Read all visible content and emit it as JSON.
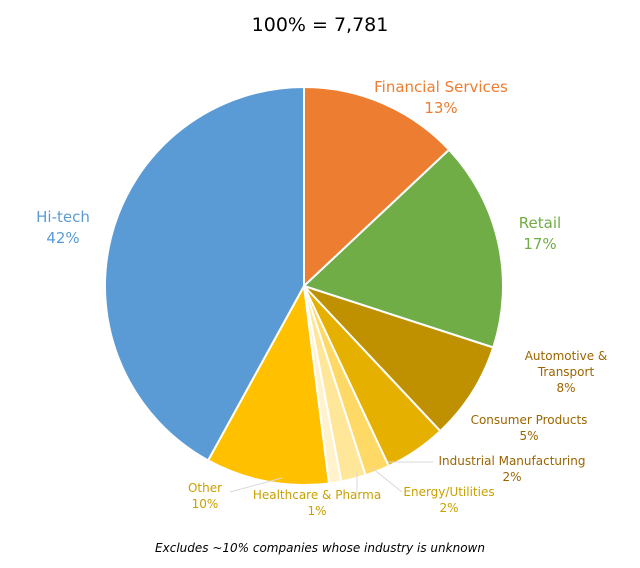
{
  "chart_title": "100% = 7,781",
  "footnote": "Excludes ~10% companies whose industry is unknown",
  "chart_data": {
    "type": "pie",
    "title": "100% = 7,781",
    "total": "7,781",
    "slices": [
      {
        "label_lines": [
          "Financial Services"
        ],
        "value": 13,
        "value_label": "13%",
        "color": "#ED7D31",
        "label_color": "#ED7D31"
      },
      {
        "label_lines": [
          "Retail"
        ],
        "value": 17,
        "value_label": "17%",
        "color": "#70AD47",
        "label_color": "#70AD47"
      },
      {
        "label_lines": [
          "Automotive &",
          "Transport"
        ],
        "value": 8,
        "value_label": "8%",
        "color": "#BF9000",
        "label_color": "#9C6500"
      },
      {
        "label_lines": [
          "Consumer Products"
        ],
        "value": 5,
        "value_label": "5%",
        "color": "#E6B000",
        "label_color": "#9C6500"
      },
      {
        "label_lines": [
          "Industrial Manufacturing"
        ],
        "value": 2,
        "value_label": "2%",
        "color": "#FFD966",
        "label_color": "#9C6500"
      },
      {
        "label_lines": [
          "Energy/Utilities"
        ],
        "value": 2,
        "value_label": "2%",
        "color": "#FFE699",
        "label_color": "#C9A000"
      },
      {
        "label_lines": [
          "Healthcare & Pharma"
        ],
        "value": 1,
        "value_label": "1%",
        "color": "#FFF2CC",
        "label_color": "#C9A000"
      },
      {
        "label_lines": [
          "Other"
        ],
        "value": 10,
        "value_label": "10%",
        "color": "#FFC000",
        "label_color": "#C9A000"
      },
      {
        "label_lines": [
          "Hi-tech"
        ],
        "value": 42,
        "value_label": "42%",
        "color": "#5B9BD5",
        "label_color": "#5B9BD5"
      }
    ]
  }
}
